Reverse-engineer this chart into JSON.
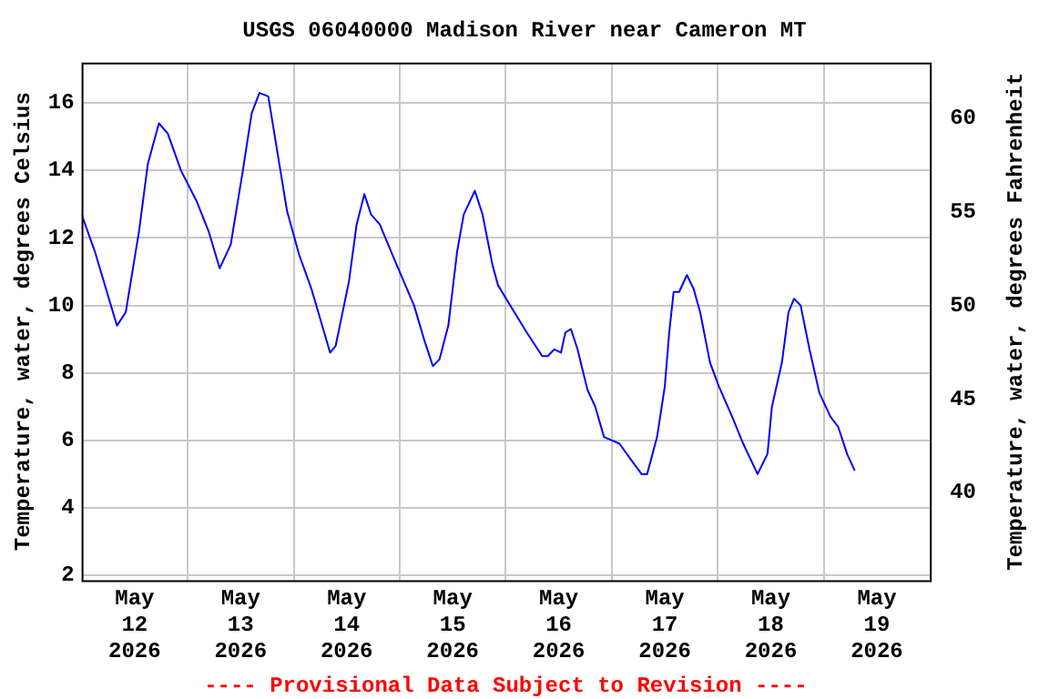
{
  "chart_data": {
    "type": "line",
    "title": "USGS 06040000 Madison River near Cameron MT",
    "ylabel": "Temperature, water, degrees Celsius",
    "y2label": "Temperature, water, degrees Fahrenheit",
    "annotations": [
      "---- Provisional Data Subject to Revision ----"
    ],
    "x": [
      "2026-05-12T00:00",
      "2026-05-12T03:00",
      "2026-05-12T08:00",
      "2026-05-12T10:00",
      "2026-05-12T13:00",
      "2026-05-12T15:00",
      "2026-05-12T17:30",
      "2026-05-12T19:30",
      "2026-05-12T22:30",
      "2026-05-13T02:00",
      "2026-05-13T04:45",
      "2026-05-13T07:15",
      "2026-05-13T09:45",
      "2026-05-13T12:30",
      "2026-05-13T14:30",
      "2026-05-13T16:15",
      "2026-05-13T18:15",
      "2026-05-13T20:15",
      "2026-05-13T22:30",
      "2026-05-14T01:15",
      "2026-05-14T04:00",
      "2026-05-14T08:15",
      "2026-05-14T09:30",
      "2026-05-14T12:30",
      "2026-05-14T14:15",
      "2026-05-14T16:00",
      "2026-05-14T17:30",
      "2026-05-14T19:30",
      "2026-05-14T23:00",
      "2026-05-15T03:15",
      "2026-05-15T05:30",
      "2026-05-15T07:30",
      "2026-05-15T09:00",
      "2026-05-15T11:00",
      "2026-05-15T13:00",
      "2026-05-15T14:30",
      "2026-05-15T17:00",
      "2026-05-15T18:45",
      "2026-05-15T21:00",
      "2026-05-15T22:15",
      "2026-05-16T01:00",
      "2026-05-16T04:45",
      "2026-05-16T08:15",
      "2026-05-16T09:30",
      "2026-05-16T11:00",
      "2026-05-16T12:30",
      "2026-05-16T13:30",
      "2026-05-16T14:45",
      "2026-05-16T16:15",
      "2026-05-16T18:30",
      "2026-05-16T20:15",
      "2026-05-16T22:15",
      "2026-05-17T01:45",
      "2026-05-17T04:30",
      "2026-05-17T06:45",
      "2026-05-17T08:00",
      "2026-05-17T10:15",
      "2026-05-17T12:00",
      "2026-05-17T13:00",
      "2026-05-17T14:00",
      "2026-05-17T15:15",
      "2026-05-17T17:00",
      "2026-05-17T18:30",
      "2026-05-17T20:00",
      "2026-05-17T22:15",
      "2026-05-18T00:15",
      "2026-05-18T03:15",
      "2026-05-18T05:45",
      "2026-05-18T09:00",
      "2026-05-18T11:15",
      "2026-05-18T12:15",
      "2026-05-18T14:30",
      "2026-05-18T16:00",
      "2026-05-18T17:15",
      "2026-05-18T18:45",
      "2026-05-18T20:45",
      "2026-05-18T23:00",
      "2026-05-19T01:30",
      "2026-05-19T03:15",
      "2026-05-19T05:15",
      "2026-05-19T07:00"
    ],
    "series": [
      {
        "color": "#0000ff",
        "values": [
          12.7,
          11.6,
          9.4,
          9.8,
          12.2,
          14.2,
          15.4,
          15.1,
          14.0,
          13.1,
          12.2,
          11.1,
          11.8,
          14.0,
          15.7,
          16.3,
          16.2,
          14.6,
          12.8,
          11.5,
          10.5,
          8.6,
          8.8,
          10.7,
          12.4,
          13.3,
          12.7,
          12.4,
          11.3,
          10.0,
          9.0,
          8.2,
          8.4,
          9.4,
          11.6,
          12.7,
          13.4,
          12.7,
          11.2,
          10.6,
          10.0,
          9.2,
          8.5,
          8.5,
          8.7,
          8.6,
          9.2,
          9.3,
          8.7,
          7.5,
          7.0,
          6.1,
          5.9,
          5.4,
          5.0,
          5.0,
          6.1,
          7.6,
          9.2,
          10.4,
          10.4,
          10.9,
          10.5,
          9.8,
          8.3,
          7.6,
          6.7,
          5.9,
          5.0,
          5.6,
          7.0,
          8.3,
          9.8,
          10.2,
          10.0,
          8.7,
          7.4,
          6.7,
          6.4,
          5.6,
          5.1
        ]
      }
    ],
    "xlim": [
      "2026-05-12T00:00",
      "2026-05-20T00:00"
    ],
    "xticks": [
      {
        "value": "2026-05-12T12:00",
        "label": "May 12 2026"
      },
      {
        "value": "2026-05-13T00:00",
        "label": null
      },
      {
        "value": "2026-05-13T12:00",
        "label": "May 13 2026"
      },
      {
        "value": "2026-05-14T00:00",
        "label": null
      },
      {
        "value": "2026-05-14T12:00",
        "label": "May 14 2026"
      },
      {
        "value": "2026-05-15T00:00",
        "label": null
      },
      {
        "value": "2026-05-15T12:00",
        "label": "May 15 2026"
      },
      {
        "value": "2026-05-16T00:00",
        "label": null
      },
      {
        "value": "2026-05-16T12:00",
        "label": "May 16 2026"
      },
      {
        "value": "2026-05-17T00:00",
        "label": null
      },
      {
        "value": "2026-05-17T12:00",
        "label": "May 17 2026"
      },
      {
        "value": "2026-05-18T00:00",
        "label": null
      },
      {
        "value": "2026-05-18T12:00",
        "label": "May 18 2026"
      },
      {
        "value": "2026-05-19T00:00",
        "label": null
      },
      {
        "value": "2026-05-19T12:00",
        "label": "May 19 2026"
      }
    ],
    "ylim": [
      1.85,
      17.2
    ],
    "yticks": [
      2,
      4,
      6,
      8,
      10,
      12,
      14,
      16
    ],
    "y2lim": [
      35.33,
      62.96
    ],
    "y2ticks": [
      40,
      45,
      50,
      55,
      60
    ],
    "grid": true,
    "marker": "none",
    "line_style": "solid"
  }
}
